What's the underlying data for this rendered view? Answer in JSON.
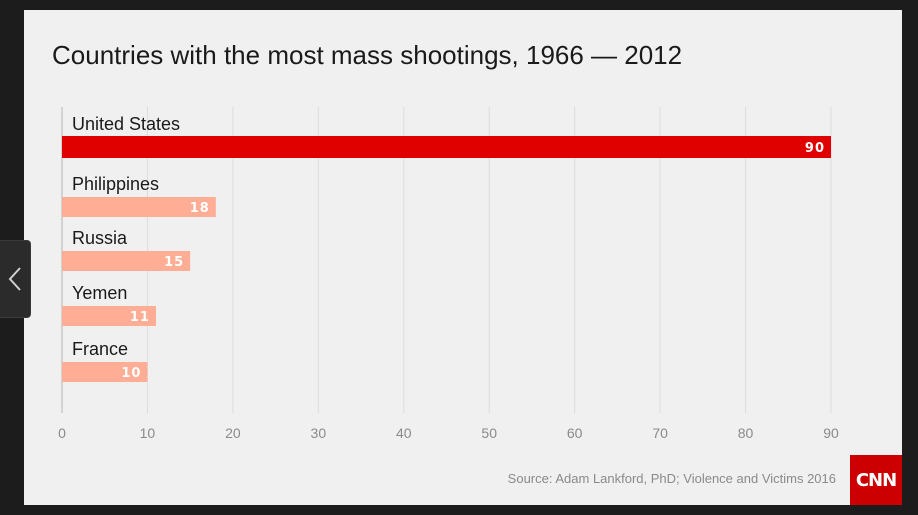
{
  "logo_text": "CNN",
  "prev_icon": "chevron-left-icon",
  "chart_data": {
    "type": "bar",
    "orientation": "horizontal",
    "title": "Countries with the most mass shootings, 1966 — 2012",
    "categories": [
      "United States",
      "Philippines",
      "Russia",
      "Yemen",
      "France"
    ],
    "values": [
      90,
      18,
      15,
      11,
      10
    ],
    "xlim": [
      0,
      90
    ],
    "xticks": [
      0,
      10,
      20,
      30,
      40,
      50,
      60,
      70,
      80,
      90
    ],
    "grid": true,
    "colors": {
      "highlight": "#e00000",
      "bar": "#ffad95",
      "grid": "#dcdcdc",
      "tick": "#8a8a8a"
    },
    "source": "Source: Adam Lankford, PhD; Violence and Victims 2016"
  }
}
